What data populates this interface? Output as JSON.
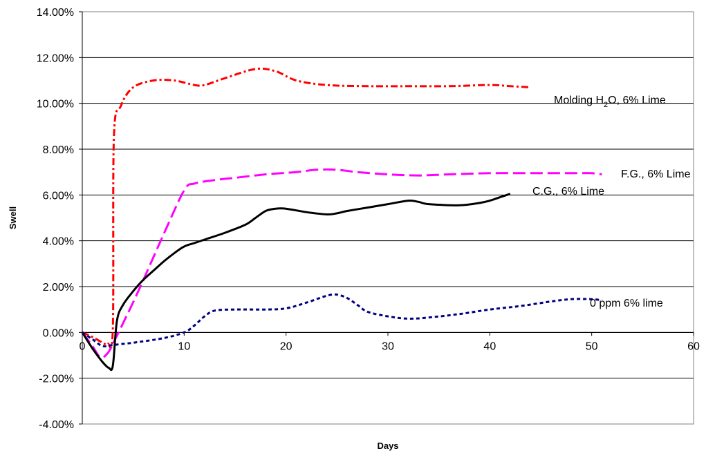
{
  "chart_data": {
    "type": "line",
    "title": "",
    "xlabel": "Days",
    "ylabel": "Swell",
    "xlim": [
      0,
      60
    ],
    "ylim": [
      -4,
      14
    ],
    "x_ticks": [
      0,
      10,
      20,
      30,
      40,
      50,
      60
    ],
    "x_tick_labels": [
      "0",
      "10",
      "20",
      "30",
      "40",
      "50",
      "60"
    ],
    "y_ticks": [
      -4,
      -2,
      0,
      2,
      4,
      6,
      8,
      10,
      12,
      14
    ],
    "y_tick_labels": [
      "-4.00%",
      "-2.00%",
      "0.00%",
      "2.00%",
      "4.00%",
      "6.00%",
      "8.00%",
      "10.00%",
      "12.00%",
      "14.00%"
    ],
    "grid": "horizontal",
    "legend": "none",
    "series": [
      {
        "name": "Molding H2O, 6% Lime",
        "label_base": "Molding H",
        "label_sub": "2",
        "label_rest": "O, 6% Lime",
        "color": "#ff0000",
        "dash": "10,4,3,4",
        "points": [
          [
            0,
            0
          ],
          [
            1,
            -0.2
          ],
          [
            2,
            -0.45
          ],
          [
            2.5,
            -0.5
          ],
          [
            3,
            0.2
          ],
          [
            3.1,
            8.5
          ],
          [
            3.8,
            9.9
          ],
          [
            5,
            10.7
          ],
          [
            7,
            11.0
          ],
          [
            9,
            11.0
          ],
          [
            11,
            10.8
          ],
          [
            12,
            10.8
          ],
          [
            14,
            11.1
          ],
          [
            17,
            11.5
          ],
          [
            19,
            11.4
          ],
          [
            21,
            11.0
          ],
          [
            24,
            10.8
          ],
          [
            28,
            10.75
          ],
          [
            32,
            10.75
          ],
          [
            36,
            10.75
          ],
          [
            40,
            10.8
          ],
          [
            42,
            10.75
          ],
          [
            44,
            10.7
          ]
        ]
      },
      {
        "name": "F.G., 6% Lime",
        "label": "F.G., 6% Lime",
        "color": "#ff00ff",
        "dash": "18,7",
        "points": [
          [
            0,
            0
          ],
          [
            1,
            -0.6
          ],
          [
            1.8,
            -1.1
          ],
          [
            2.5,
            -0.9
          ],
          [
            3,
            -0.5
          ],
          [
            4,
            0.4
          ],
          [
            5.5,
            1.8
          ],
          [
            8,
            4.3
          ],
          [
            10,
            6.2
          ],
          [
            11,
            6.5
          ],
          [
            13,
            6.65
          ],
          [
            15,
            6.75
          ],
          [
            18,
            6.9
          ],
          [
            21,
            7.0
          ],
          [
            23,
            7.1
          ],
          [
            25,
            7.1
          ],
          [
            27,
            7.0
          ],
          [
            30,
            6.9
          ],
          [
            33,
            6.85
          ],
          [
            36,
            6.9
          ],
          [
            40,
            6.95
          ],
          [
            44,
            6.95
          ],
          [
            48,
            6.95
          ],
          [
            50,
            6.95
          ],
          [
            51,
            6.9
          ]
        ]
      },
      {
        "name": "C.G., 6% Lime",
        "label": "C.G., 6% Lime",
        "color": "#000000",
        "dash": "",
        "points": [
          [
            0,
            0
          ],
          [
            1,
            -0.7
          ],
          [
            2,
            -1.3
          ],
          [
            2.6,
            -1.55
          ],
          [
            3,
            -1.45
          ],
          [
            3.4,
            0.5
          ],
          [
            4,
            1.2
          ],
          [
            5,
            1.8
          ],
          [
            6,
            2.3
          ],
          [
            7,
            2.7
          ],
          [
            8,
            3.1
          ],
          [
            9,
            3.45
          ],
          [
            10,
            3.75
          ],
          [
            11,
            3.9
          ],
          [
            12,
            4.05
          ],
          [
            14,
            4.35
          ],
          [
            16,
            4.7
          ],
          [
            17,
            5.0
          ],
          [
            18,
            5.3
          ],
          [
            19,
            5.4
          ],
          [
            20,
            5.4
          ],
          [
            22,
            5.25
          ],
          [
            24,
            5.15
          ],
          [
            25,
            5.2
          ],
          [
            26,
            5.3
          ],
          [
            28,
            5.45
          ],
          [
            30,
            5.6
          ],
          [
            32,
            5.75
          ],
          [
            33,
            5.7
          ],
          [
            34,
            5.6
          ],
          [
            37,
            5.55
          ],
          [
            39,
            5.65
          ],
          [
            40,
            5.75
          ],
          [
            41,
            5.9
          ],
          [
            42,
            6.05
          ]
        ]
      },
      {
        "name": "0 ppm 6% lime",
        "label": "0 ppm 6% lime",
        "color": "#000080",
        "dash": "5,4",
        "points": [
          [
            0,
            0
          ],
          [
            1,
            -0.3
          ],
          [
            2,
            -0.6
          ],
          [
            3,
            -0.55
          ],
          [
            5,
            -0.45
          ],
          [
            8,
            -0.25
          ],
          [
            10,
            0.0
          ],
          [
            11,
            0.3
          ],
          [
            12,
            0.7
          ],
          [
            13,
            0.95
          ],
          [
            15,
            1.0
          ],
          [
            18,
            1.0
          ],
          [
            20,
            1.05
          ],
          [
            22,
            1.3
          ],
          [
            24,
            1.6
          ],
          [
            25,
            1.65
          ],
          [
            26,
            1.5
          ],
          [
            27,
            1.2
          ],
          [
            28,
            0.9
          ],
          [
            30,
            0.7
          ],
          [
            32,
            0.6
          ],
          [
            34,
            0.65
          ],
          [
            37,
            0.8
          ],
          [
            40,
            1.0
          ],
          [
            43,
            1.15
          ],
          [
            46,
            1.35
          ],
          [
            48,
            1.45
          ],
          [
            50,
            1.45
          ],
          [
            51,
            1.4
          ]
        ]
      }
    ]
  }
}
